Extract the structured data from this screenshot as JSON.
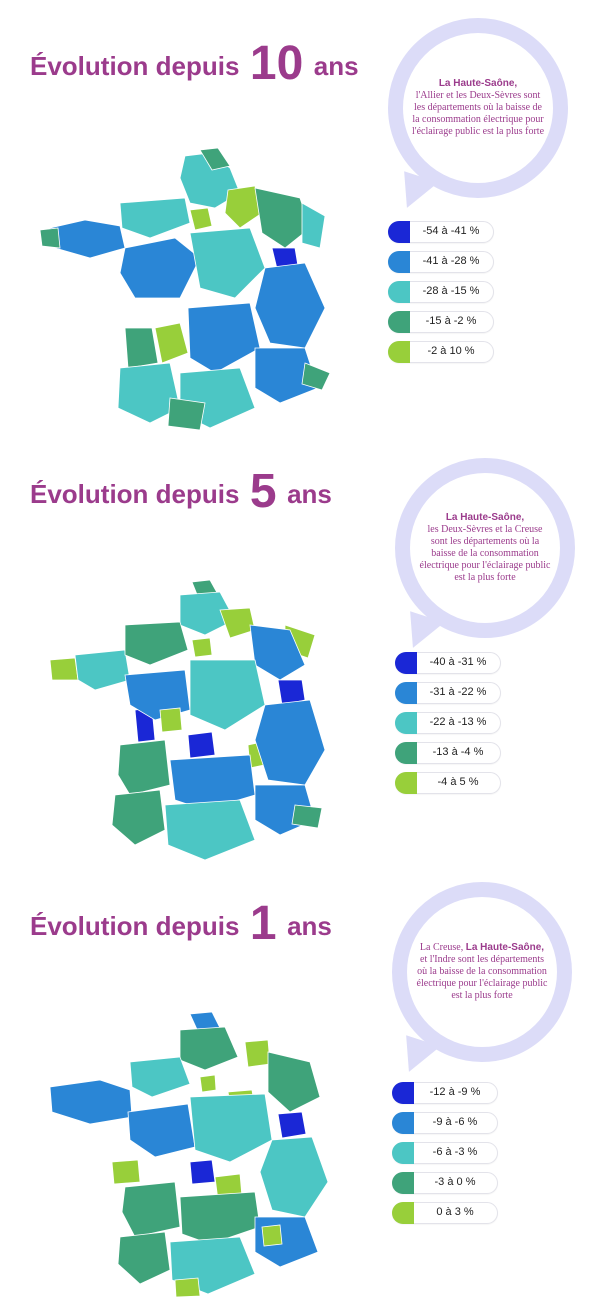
{
  "colors": {
    "title": "#9b3b8c",
    "bubble_ring": "#dcdcf8",
    "class_1": "#1a27d6",
    "class_2": "#2a86d6",
    "class_3": "#4cc6c4",
    "class_4": "#3fa37a",
    "class_5": "#98cf3a"
  },
  "sections": [
    {
      "title_pre": "Évolution depuis",
      "title_num": "10",
      "title_post": "ans",
      "bubble_bold": "La Haute-Saône,",
      "bubble_rest": "l'Allier et les Deux-Sèvres sont les départements où la baisse de la consommation électrique pour l'éclairage public est la plus forte",
      "legend": [
        {
          "label": "-54 à -41 %",
          "color": "#1a27d6"
        },
        {
          "label": "-41 à -28 %",
          "color": "#2a86d6"
        },
        {
          "label": "-28 à -15 %",
          "color": "#4cc6c4"
        },
        {
          "label": "-15 à -2 %",
          "color": "#3fa37a"
        },
        {
          "label": "-2 à 10 %",
          "color": "#98cf3a"
        }
      ]
    },
    {
      "title_pre": "Évolution depuis",
      "title_num": "5",
      "title_post": "ans",
      "bubble_bold": "La Haute-Saône,",
      "bubble_rest": "les Deux-Sèvres et la Creuse sont les départements où la baisse de la consommation électrique pour l'éclairage public est la plus forte",
      "legend": [
        {
          "label": "-40 à -31 %",
          "color": "#1a27d6"
        },
        {
          "label": "-31 à -22 %",
          "color": "#2a86d6"
        },
        {
          "label": "-22 à -13 %",
          "color": "#4cc6c4"
        },
        {
          "label": "-13 à -4 %",
          "color": "#3fa37a"
        },
        {
          "label": "-4 à 5 %",
          "color": "#98cf3a"
        }
      ]
    },
    {
      "title_pre": "Évolution depuis",
      "title_num": "1",
      "title_post": "ans",
      "bubble_prefix": "La Creuse,",
      "bubble_bold": "La Haute-Saône,",
      "bubble_rest": "et l'Indre sont les départements où la baisse de la consommation électrique pour l'éclairage public est la plus forte",
      "legend": [
        {
          "label": "-12 à -9 %",
          "color": "#1a27d6"
        },
        {
          "label": "-9 à -6 %",
          "color": "#2a86d6"
        },
        {
          "label": "-6 à -3 %",
          "color": "#4cc6c4"
        },
        {
          "label": "-3 à 0 %",
          "color": "#3fa37a"
        },
        {
          "label": "0 à 3 %",
          "color": "#98cf3a"
        }
      ]
    }
  ]
}
